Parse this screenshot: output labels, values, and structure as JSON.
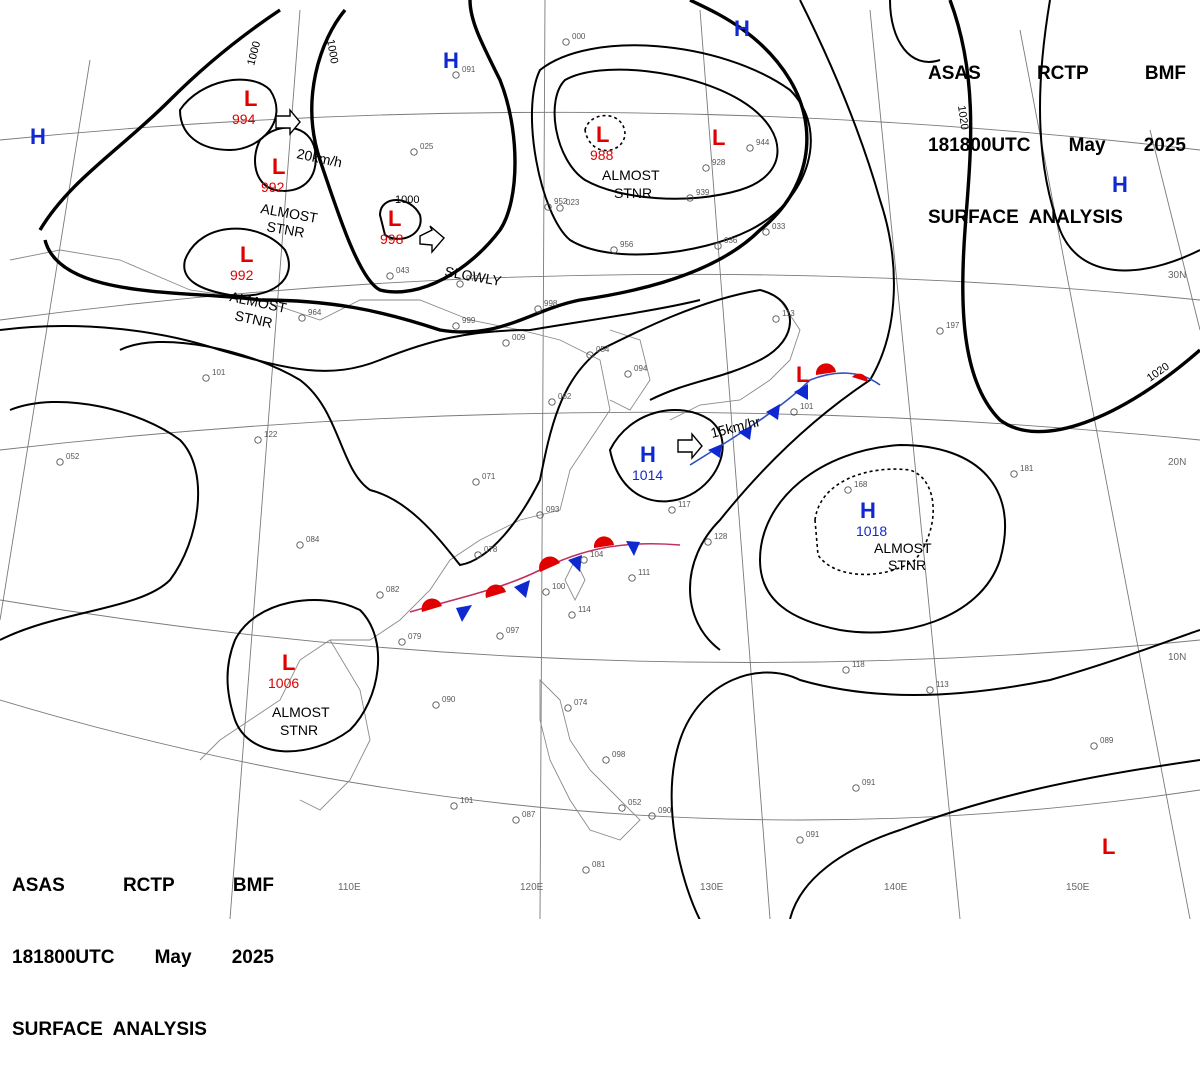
{
  "header_top_right": {
    "line1": [
      "ASAS",
      "RCTP",
      "BMF"
    ],
    "line2": [
      "181800UTC",
      "May",
      "2025"
    ],
    "line3": "SURFACE  ANALYSIS"
  },
  "header_bottom_left": {
    "line1": [
      "ASAS",
      "RCTP",
      "BMF"
    ],
    "line2": [
      "181800UTC",
      "May",
      "2025"
    ],
    "line3": "SURFACE  ANALYSIS"
  },
  "colors": {
    "low": "#e00000",
    "high": "#1028d0",
    "isobar": "#000000",
    "grid": "#7a7a7a",
    "coast": "#8a8a8a"
  },
  "latitude_labels": [
    "30N",
    "20N",
    "10N"
  ],
  "longitude_labels": [
    "110E",
    "120E",
    "130E",
    "140E",
    "150E"
  ],
  "isobar_labels": [
    "1000",
    "1000",
    "1000",
    "1020",
    "1020"
  ],
  "pressure_centers": [
    {
      "type": "L",
      "label": "L",
      "pressure": "994"
    },
    {
      "type": "L",
      "label": "L",
      "pressure": "992"
    },
    {
      "type": "L",
      "label": "L",
      "pressure": "992"
    },
    {
      "type": "L",
      "label": "L",
      "pressure": "998"
    },
    {
      "type": "L",
      "label": "L",
      "pressure": "988"
    },
    {
      "type": "L",
      "label": "L",
      "pressure": ""
    },
    {
      "type": "L",
      "label": "L",
      "pressure": "1006"
    },
    {
      "type": "L",
      "label": "L",
      "pressure": ""
    },
    {
      "type": "L",
      "label": "L",
      "pressure": ""
    },
    {
      "type": "H",
      "label": "H",
      "pressure": ""
    },
    {
      "type": "H",
      "label": "H",
      "pressure": ""
    },
    {
      "type": "H",
      "label": "H",
      "pressure": ""
    },
    {
      "type": "H",
      "label": "H",
      "pressure": ""
    },
    {
      "type": "H",
      "label": "H",
      "pressure": "1014"
    },
    {
      "type": "H",
      "label": "H",
      "pressure": "1018"
    }
  ],
  "annotations": {
    "speed_20": "20km/h",
    "speed_15": "15km/hr",
    "slowly": "SLOWLY",
    "almost": "ALMOST",
    "stnr": "STNR"
  },
  "station_labels": [
    "000",
    "091",
    "025",
    "052",
    "122",
    "101",
    "082",
    "084",
    "079",
    "090",
    "097",
    "093",
    "071",
    "078",
    "104",
    "100",
    "114",
    "111",
    "117",
    "128",
    "094",
    "062",
    "054",
    "009",
    "999",
    "977",
    "964",
    "043",
    "023",
    "956",
    "952",
    "998",
    "928",
    "939",
    "036",
    "033",
    "944",
    "113",
    "101",
    "197",
    "181",
    "168",
    "118",
    "113",
    "089",
    "091",
    "091",
    "087",
    "101",
    "098",
    "074",
    "052",
    "090",
    "081"
  ]
}
